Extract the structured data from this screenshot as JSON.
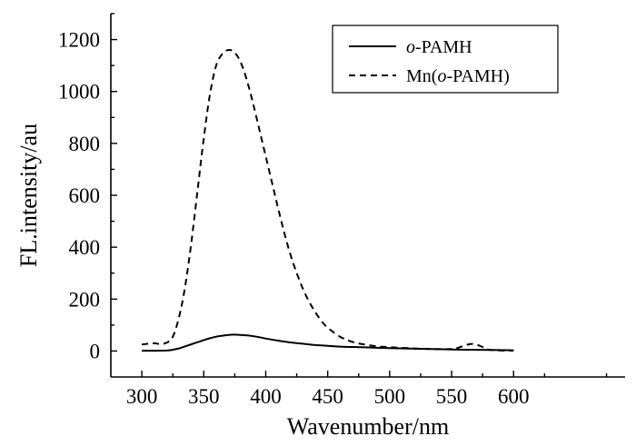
{
  "chart_data": {
    "type": "line",
    "title": "",
    "xlabel": "Wavenumber/nm",
    "ylabel": "FL.intensity/au",
    "xlim": [
      275,
      690
    ],
    "ylim": [
      -100,
      1300
    ],
    "xticks": [
      300,
      350,
      400,
      450,
      500,
      550,
      600
    ],
    "yticks": [
      0,
      200,
      400,
      600,
      800,
      1000,
      1200
    ],
    "grid": false,
    "legend_position": "top-right",
    "series": [
      {
        "name": "o-PAMH",
        "name_prefix": "o",
        "name_suffix": "-PAMH",
        "style": "solid",
        "x": [
          300,
          310,
          320,
          325,
          330,
          335,
          340,
          345,
          350,
          355,
          360,
          365,
          370,
          375,
          380,
          385,
          390,
          395,
          400,
          410,
          420,
          430,
          440,
          450,
          460,
          480,
          500,
          520,
          540,
          560,
          580,
          600
        ],
        "y": [
          1,
          1,
          2,
          5,
          10,
          18,
          26,
          34,
          42,
          49,
          55,
          59,
          62,
          63,
          62,
          60,
          57,
          53,
          48,
          40,
          33,
          28,
          23,
          20,
          17,
          14,
          11,
          9,
          7,
          5,
          4,
          3
        ]
      },
      {
        "name": "Mn(o-PAMH)",
        "name_prefix": "Mn(",
        "name_italic": "o",
        "name_suffix": "-PAMH)",
        "style": "dashed",
        "x": [
          300,
          305,
          310,
          315,
          320,
          325,
          330,
          335,
          340,
          345,
          350,
          355,
          360,
          365,
          370,
          375,
          380,
          385,
          390,
          395,
          400,
          405,
          410,
          415,
          420,
          425,
          430,
          435,
          440,
          445,
          450,
          460,
          470,
          480,
          490,
          500,
          510,
          520,
          530,
          540,
          550,
          555,
          560,
          565,
          570,
          575,
          580,
          590,
          600
        ],
        "y": [
          25,
          28,
          30,
          27,
          32,
          55,
          130,
          250,
          420,
          620,
          820,
          990,
          1100,
          1145,
          1160,
          1150,
          1110,
          1040,
          950,
          850,
          750,
          650,
          550,
          455,
          370,
          300,
          240,
          190,
          150,
          115,
          90,
          55,
          35,
          25,
          18,
          15,
          12,
          10,
          8,
          7,
          8,
          12,
          20,
          27,
          25,
          15,
          5,
          2,
          1
        ]
      }
    ]
  }
}
